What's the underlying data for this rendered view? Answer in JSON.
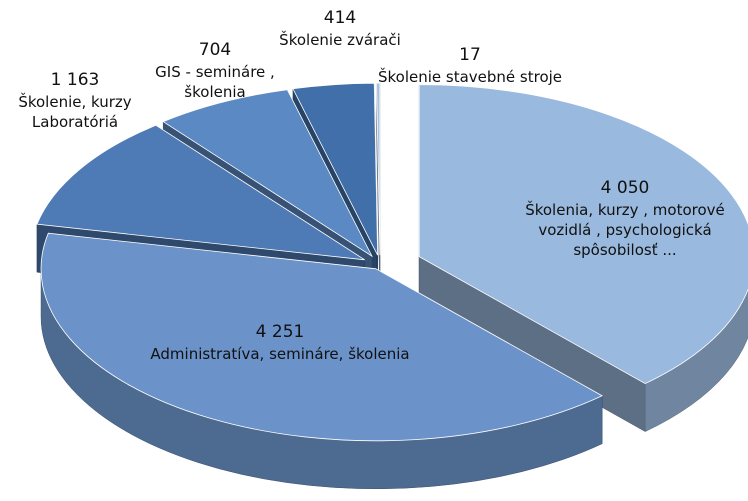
{
  "chart_data": {
    "type": "pie",
    "categories": [
      "Školenia, kurzy , motorové vozidlá , psychologická spôsobilosť ...",
      "Administratíva, semináre, školenia",
      "Školenie, kurzy Laboratóriá",
      "GIS - semináre , školenia",
      "Školenie zvárači",
      "Školenie stavebné stroje"
    ],
    "values": [
      4050,
      4251,
      1163,
      704,
      414,
      17
    ],
    "value_labels": [
      "4 050",
      "4 251",
      "1 163",
      "704",
      "414",
      "17"
    ],
    "colors": [
      "#9ab9de",
      "#6b93c9",
      "#4e7ab6",
      "#5b89c3",
      "#416fa9",
      "#a8c1e0"
    ]
  }
}
